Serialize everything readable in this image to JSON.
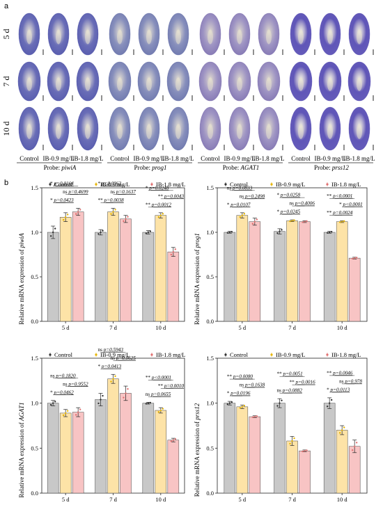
{
  "panel_a": {
    "letter": "a",
    "rows": [
      "5 d",
      "7 d",
      "10 d"
    ],
    "column_labels": [
      "Control",
      "IB-0.9 mg/L",
      "IB-1.8 mg/L"
    ],
    "probe_prefix": "Probe:",
    "groups": [
      {
        "probe": "piwiA",
        "stain": "#3a3fa0",
        "density": 0.6
      },
      {
        "probe": "prog1",
        "stain": "#5560a0",
        "density": 0.45
      },
      {
        "probe": "AGAT1",
        "stain": "#6e5fa6",
        "density": 0.35
      },
      {
        "probe": "prss12",
        "stain": "#4a3fae",
        "density": 0.95
      }
    ]
  },
  "panel_b": {
    "letter": "b",
    "legend": [
      "Control",
      "IB-0.9 mg/L",
      "IB-1.8 mg/L"
    ],
    "colors": [
      "#c8c8c8",
      "#fde3a7",
      "#f8c4c4"
    ],
    "dot_colors": [
      "#333333",
      "#e6b400",
      "#e07070"
    ]
  },
  "chart_data": [
    {
      "type": "bar",
      "ylabel_prefix": "Relative mRNA expression of",
      "gene": "piwiA",
      "categories": [
        "5 d",
        "7 d",
        "10 d"
      ],
      "ylim": [
        0,
        1.5
      ],
      "yticks": [
        "0.0",
        "0.5",
        "1.0",
        "1.5"
      ],
      "series": [
        {
          "name": "Control",
          "values": [
            1.0,
            1.0,
            1.0
          ],
          "errors": [
            0.07,
            0.03,
            0.02
          ]
        },
        {
          "name": "IB-0.9 mg/L",
          "values": [
            1.17,
            1.23,
            1.19
          ],
          "errors": [
            0.05,
            0.04,
            0.03
          ]
        },
        {
          "name": "IB-1.8 mg/L",
          "values": [
            1.23,
            1.15,
            0.78
          ],
          "errors": [
            0.04,
            0.04,
            0.05
          ]
        }
      ],
      "annotations": [
        [
          "*",
          "p=0.0164",
          "ns",
          "p=0.4699",
          "*",
          "p=0.0423"
        ],
        [
          "*",
          "p=0.0363",
          "ns",
          "p=0.1637",
          "**",
          "p=0.0038"
        ],
        [
          "*",
          "p=0.0248",
          "**",
          "p=0.0043",
          "**",
          "p=0.0012"
        ]
      ],
      "italic_p": [
        false,
        false,
        false
      ]
    },
    {
      "type": "bar",
      "ylabel_prefix": "Relative mRNA expression of",
      "gene": "prog1",
      "categories": [
        "5 d",
        "7 d",
        "10 d"
      ],
      "ylim": [
        0,
        1.5
      ],
      "yticks": [
        "0.0",
        "0.5",
        "1.0",
        "1.5"
      ],
      "series": [
        {
          "name": "Control",
          "values": [
            1.0,
            1.01,
            1.0
          ],
          "errors": [
            0.01,
            0.03,
            0.01
          ]
        },
        {
          "name": "IB-0.9 mg/L",
          "values": [
            1.19,
            1.13,
            1.12
          ],
          "errors": [
            0.03,
            0.01,
            0.01
          ]
        },
        {
          "name": "IB-1.8 mg/L",
          "values": [
            1.12,
            1.12,
            0.71
          ],
          "errors": [
            0.04,
            0.01,
            0.01
          ]
        }
      ],
      "annotations": [
        [
          "ns",
          "p=0.0833",
          "ns",
          "p=0.2498",
          "*",
          "p=0.0107"
        ],
        [
          "*",
          "p=0.0258",
          "ns",
          "p=0.4006",
          "*",
          "p=0.0245"
        ],
        [
          "**",
          "p<0.0001",
          "*",
          "p<0.0001",
          "**",
          "p=0.0024"
        ]
      ],
      "italic_p": [
        false,
        false,
        true
      ]
    },
    {
      "type": "bar",
      "ylabel_prefix": "Relative mRNA expression of",
      "gene": "AGAT1",
      "categories": [
        "5 d",
        "7 d",
        "10 d"
      ],
      "ylim": [
        0,
        1.5
      ],
      "yticks": [
        "0.0",
        "0.5",
        "1.0",
        "1.5"
      ],
      "series": [
        {
          "name": "Control",
          "values": [
            1.0,
            1.04,
            1.0
          ],
          "errors": [
            0.03,
            0.07,
            0.01
          ]
        },
        {
          "name": "IB-0.9 mg/L",
          "values": [
            0.89,
            1.27,
            0.92
          ],
          "errors": [
            0.04,
            0.05,
            0.03
          ]
        },
        {
          "name": "IB-1.8 mg/L",
          "values": [
            0.9,
            1.11,
            0.59
          ],
          "errors": [
            0.05,
            0.08,
            0.02
          ]
        }
      ],
      "annotations": [
        [
          "ns",
          "p=0.1820",
          "ns",
          "p=0.9552",
          "*",
          "p=0.0462"
        ],
        [
          "ns",
          "p=0.5943",
          "ns",
          "p=0.0625",
          "*",
          "p=0.0413"
        ],
        [
          "**",
          "p<0.0001",
          "**",
          "p=0.0010",
          "ns",
          "p=0.0655"
        ]
      ],
      "italic_p": [
        false,
        false,
        true
      ]
    },
    {
      "type": "bar",
      "ylabel_prefix": "Relative mRNA expression of",
      "gene": "prss12",
      "categories": [
        "5 d",
        "7 d",
        "10 d"
      ],
      "ylim": [
        0,
        1.5
      ],
      "yticks": [
        "0.0",
        "0.5",
        "1.0",
        "1.5"
      ],
      "series": [
        {
          "name": "Control",
          "values": [
            1.0,
            1.0,
            1.0
          ],
          "errors": [
            0.02,
            0.05,
            0.06
          ]
        },
        {
          "name": "IB-0.9 mg/L",
          "values": [
            0.96,
            0.58,
            0.7
          ],
          "errors": [
            0.02,
            0.05,
            0.05
          ]
        },
        {
          "name": "IB-1.8 mg/L",
          "values": [
            0.85,
            0.47,
            0.52
          ],
          "errors": [
            0.01,
            0.01,
            0.07
          ]
        }
      ],
      "annotations": [
        [
          "**",
          "p=0.0080",
          "ns",
          "p=0.1638",
          "*",
          "p=0.0196"
        ],
        [
          "**",
          "p=0.0051",
          "**",
          "p=0.0016",
          "ns",
          "p=0.0882"
        ],
        [
          "**",
          "p=0.0046",
          "ns",
          "p=0.978",
          "*",
          "p=0.0113"
        ]
      ],
      "italic_p": [
        false,
        false,
        true
      ]
    }
  ]
}
